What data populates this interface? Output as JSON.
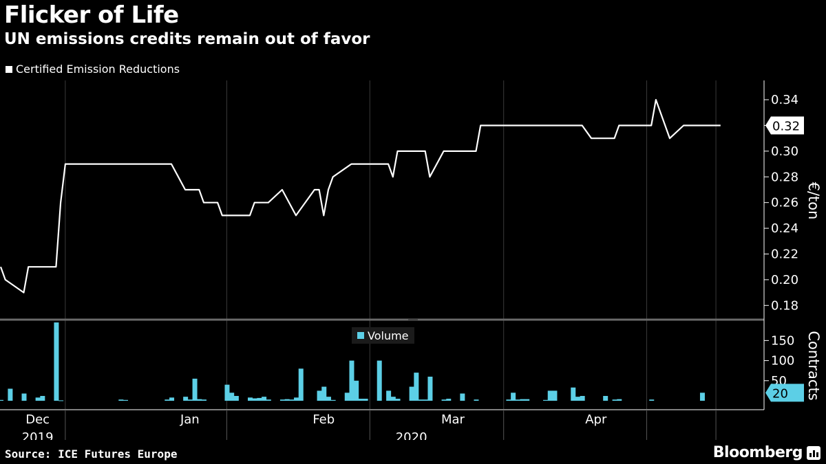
{
  "title": "Flicker of Life",
  "subtitle": "UN emissions credits remain out of favor",
  "source": "Source: ICE Futures Europe",
  "brand": "Bloomberg",
  "brand_icon": "bloomberg-logo-icon",
  "colors": {
    "background": "#000000",
    "price_line": "#ffffff",
    "volume": "#5ccfe6",
    "grid": "#3a3a3a"
  },
  "chart_data": [
    {
      "type": "line",
      "title": "",
      "legend": "Certified Emission Reductions",
      "ylabel": "€/ton",
      "ylim": [
        0.17,
        0.355
      ],
      "yticks": [
        "0.34",
        "0.32",
        "0.30",
        "0.28",
        "0.26",
        "0.24",
        "0.22",
        "0.20",
        "0.18"
      ],
      "last_value_label": "0.32",
      "x_range": [
        "2019-11-27",
        "2020-05-07"
      ],
      "series": [
        {
          "name": "Certified Emission Reductions",
          "points": [
            [
              "2019-11-27",
              0.21
            ],
            [
              "2019-11-28",
              0.2
            ],
            [
              "2019-12-02",
              0.19
            ],
            [
              "2019-12-03",
              0.21
            ],
            [
              "2019-12-09",
              0.21
            ],
            [
              "2019-12-10",
              0.26
            ],
            [
              "2019-12-11",
              0.29
            ],
            [
              "2019-12-12",
              0.29
            ],
            [
              "2019-12-20",
              0.29
            ],
            [
              "2020-01-03",
              0.29
            ],
            [
              "2020-01-06",
              0.27
            ],
            [
              "2020-01-09",
              0.27
            ],
            [
              "2020-01-10",
              0.26
            ],
            [
              "2020-01-13",
              0.26
            ],
            [
              "2020-01-14",
              0.25
            ],
            [
              "2020-01-20",
              0.25
            ],
            [
              "2020-01-21",
              0.26
            ],
            [
              "2020-01-24",
              0.26
            ],
            [
              "2020-01-27",
              0.27
            ],
            [
              "2020-01-30",
              0.25
            ],
            [
              "2020-02-03",
              0.27
            ],
            [
              "2020-02-04",
              0.27
            ],
            [
              "2020-02-05",
              0.25
            ],
            [
              "2020-02-06",
              0.27
            ],
            [
              "2020-02-07",
              0.28
            ],
            [
              "2020-02-11",
              0.29
            ],
            [
              "2020-02-19",
              0.29
            ],
            [
              "2020-02-20",
              0.28
            ],
            [
              "2020-02-21",
              0.3
            ],
            [
              "2020-02-27",
              0.3
            ],
            [
              "2020-02-28",
              0.28
            ],
            [
              "2020-03-02",
              0.3
            ],
            [
              "2020-03-09",
              0.3
            ],
            [
              "2020-03-10",
              0.32
            ],
            [
              "2020-04-01",
              0.32
            ],
            [
              "2020-04-03",
              0.31
            ],
            [
              "2020-04-08",
              0.31
            ],
            [
              "2020-04-09",
              0.32
            ],
            [
              "2020-04-16",
              0.32
            ],
            [
              "2020-04-17",
              0.34
            ],
            [
              "2020-04-20",
              0.31
            ],
            [
              "2020-04-23",
              0.32
            ],
            [
              "2020-05-01",
              0.32
            ]
          ]
        }
      ]
    },
    {
      "type": "bar",
      "title": "",
      "legend": "Volume",
      "ylabel": "Contracts",
      "ylim": [
        0,
        190
      ],
      "yticks": [
        "150",
        "100",
        "50"
      ],
      "last_value_label": "20",
      "series": [
        {
          "name": "Volume",
          "points": [
            [
              "2019-11-27",
              2
            ],
            [
              "2019-11-29",
              30
            ],
            [
              "2019-12-02",
              18
            ],
            [
              "2019-12-05",
              8
            ],
            [
              "2019-12-06",
              12
            ],
            [
              "2019-12-09",
              195
            ],
            [
              "2019-12-10",
              1
            ],
            [
              "2019-12-23",
              3
            ],
            [
              "2019-12-24",
              2
            ],
            [
              "2020-01-02",
              3
            ],
            [
              "2020-01-03",
              8
            ],
            [
              "2020-01-06",
              10
            ],
            [
              "2020-01-07",
              3
            ],
            [
              "2020-01-08",
              55
            ],
            [
              "2020-01-09",
              4
            ],
            [
              "2020-01-10",
              3
            ],
            [
              "2020-01-15",
              40
            ],
            [
              "2020-01-16",
              20
            ],
            [
              "2020-01-17",
              12
            ],
            [
              "2020-01-20",
              8
            ],
            [
              "2020-01-21",
              6
            ],
            [
              "2020-01-22",
              7
            ],
            [
              "2020-01-23",
              10
            ],
            [
              "2020-01-24",
              3
            ],
            [
              "2020-01-27",
              3
            ],
            [
              "2020-01-28",
              4
            ],
            [
              "2020-01-29",
              3
            ],
            [
              "2020-01-30",
              8
            ],
            [
              "2020-01-31",
              80
            ],
            [
              "2020-02-04",
              25
            ],
            [
              "2020-02-05",
              35
            ],
            [
              "2020-02-06",
              10
            ],
            [
              "2020-02-07",
              2
            ],
            [
              "2020-02-10",
              20
            ],
            [
              "2020-02-11",
              100
            ],
            [
              "2020-02-12",
              50
            ],
            [
              "2020-02-13",
              5
            ],
            [
              "2020-02-14",
              5
            ],
            [
              "2020-02-17",
              100
            ],
            [
              "2020-02-19",
              25
            ],
            [
              "2020-02-20",
              10
            ],
            [
              "2020-02-21",
              5
            ],
            [
              "2020-02-24",
              35
            ],
            [
              "2020-02-25",
              70
            ],
            [
              "2020-02-26",
              3
            ],
            [
              "2020-02-27",
              3
            ],
            [
              "2020-02-28",
              60
            ],
            [
              "2020-03-02",
              3
            ],
            [
              "2020-03-03",
              5
            ],
            [
              "2020-03-06",
              18
            ],
            [
              "2020-03-09",
              3
            ],
            [
              "2020-03-16",
              3
            ],
            [
              "2020-03-17",
              20
            ],
            [
              "2020-03-18",
              3
            ],
            [
              "2020-03-19",
              4
            ],
            [
              "2020-03-20",
              4
            ],
            [
              "2020-03-24",
              2
            ],
            [
              "2020-03-25",
              25
            ],
            [
              "2020-03-26",
              25
            ],
            [
              "2020-03-30",
              33
            ],
            [
              "2020-03-31",
              10
            ],
            [
              "2020-04-01",
              12
            ],
            [
              "2020-04-06",
              12
            ],
            [
              "2020-04-08",
              3
            ],
            [
              "2020-04-09",
              4
            ],
            [
              "2020-04-16",
              3
            ],
            [
              "2020-04-27",
              20
            ]
          ]
        }
      ]
    }
  ],
  "x_axis": {
    "month_labels": [
      {
        "label": "Dec",
        "date": "2019-12-05"
      },
      {
        "label": "Jan",
        "date": "2020-01-07"
      },
      {
        "label": "Feb",
        "date": "2020-02-05"
      },
      {
        "label": "Mar",
        "date": "2020-03-04"
      },
      {
        "label": "Apr",
        "date": "2020-04-04"
      }
    ],
    "month_ticks": [
      "2019-12-11",
      "2020-01-15",
      "2020-02-15",
      "2020-03-15",
      "2020-04-15",
      "2020-04-30"
    ],
    "year_labels": [
      {
        "label": "2019",
        "date": "2019-12-05"
      },
      {
        "label": "2020",
        "date": "2020-02-24"
      }
    ]
  }
}
